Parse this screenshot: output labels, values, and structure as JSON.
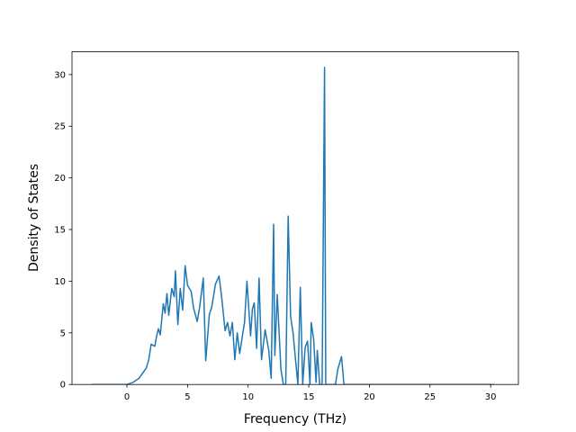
{
  "chart_data": {
    "type": "line",
    "x_label": "Frequency (THz)",
    "y_label": "Density of States",
    "color": "#1f77b4",
    "x": [
      -2.9,
      0,
      0.5,
      1.0,
      1.3,
      1.6,
      1.8,
      2.0,
      2.3,
      2.45,
      2.6,
      2.75,
      3.0,
      3.15,
      3.3,
      3.45,
      3.7,
      3.9,
      4.0,
      4.2,
      4.4,
      4.6,
      4.8,
      5.0,
      5.3,
      5.5,
      5.8,
      6.0,
      6.3,
      6.5,
      6.8,
      7.0,
      7.3,
      7.6,
      7.8,
      8.1,
      8.3,
      8.5,
      8.7,
      8.9,
      9.1,
      9.3,
      9.5,
      9.7,
      9.9,
      10.2,
      10.35,
      10.5,
      10.7,
      10.9,
      11.1,
      11.4,
      11.7,
      11.9,
      12.1,
      12.2,
      12.4,
      12.7,
      12.9,
      13.1,
      13.3,
      13.5,
      13.7,
      14.1,
      14.3,
      14.5,
      14.7,
      14.9,
      15.1,
      15.2,
      15.4,
      15.6,
      15.7,
      15.9,
      16.1,
      16.3,
      16.4,
      17.2,
      17.4,
      17.7,
      17.9,
      30.3
    ],
    "values": [
      0,
      0,
      0.2,
      0.6,
      1.1,
      1.6,
      2.4,
      3.9,
      3.7,
      4.7,
      5.4,
      4.8,
      7.8,
      6.9,
      8.8,
      6.7,
      9.3,
      8.5,
      11.0,
      5.8,
      9.3,
      7.2,
      11.5,
      9.6,
      9.0,
      7.4,
      6.1,
      7.5,
      10.3,
      2.3,
      6.8,
      7.5,
      9.7,
      10.5,
      8.6,
      5.2,
      6.0,
      4.7,
      6.0,
      2.4,
      5.0,
      3.0,
      4.5,
      6.0,
      10.0,
      4.7,
      7.3,
      7.9,
      3.5,
      10.3,
      2.4,
      5.3,
      3.3,
      0.6,
      15.5,
      2.8,
      8.7,
      1.5,
      0,
      0,
      16.3,
      6.6,
      5.0,
      0,
      9.4,
      0,
      3.6,
      4.2,
      0,
      6.0,
      4.4,
      0.2,
      3.3,
      0,
      0,
      30.7,
      0,
      0,
      1.5,
      2.7,
      0,
      0
    ],
    "xlim": [
      -4.53,
      32.29
    ],
    "xticks": [
      0,
      5,
      10,
      15,
      20,
      25,
      30
    ],
    "ylim": [
      0,
      32.2
    ],
    "yticks": [
      0,
      5,
      10,
      15,
      20,
      25,
      30
    ]
  }
}
